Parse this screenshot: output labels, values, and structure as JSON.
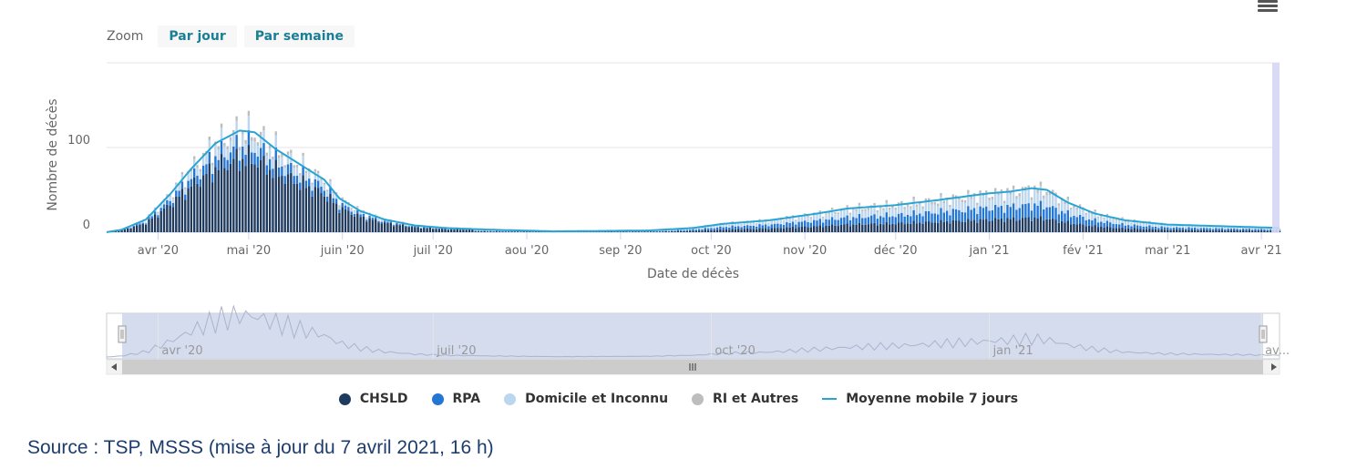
{
  "zoom": {
    "label": "Zoom",
    "buttons": [
      "Par jour",
      "Par semaine"
    ]
  },
  "chart_data": {
    "type": "bar",
    "stacked": true,
    "ylabel": "Nombre de décès",
    "xlabel": "Date de décès",
    "ylim": [
      0,
      200
    ],
    "yticks": [
      0,
      100
    ],
    "x_start": "2020-03-15",
    "x_end": "2021-04-07",
    "xticks": [
      "avr '20",
      "mai '20",
      "juin '20",
      "juil '20",
      "aou '20",
      "sep '20",
      "oct '20",
      "nov '20",
      "déc '20",
      "jan '21",
      "fév '21",
      "mar '21",
      "avr '21"
    ],
    "navigator_labels": [
      "avr '20",
      "juil '20",
      "oct '20",
      "jan '21",
      "av..."
    ],
    "grid": true,
    "legend_position": "bottom-center",
    "series": [
      {
        "name": "CHSLD",
        "color": "#1f3a5f"
      },
      {
        "name": "RPA",
        "color": "#2376d4"
      },
      {
        "name": "Domicile et Inconnu",
        "color": "#bcd6ee"
      },
      {
        "name": "RI et Autres",
        "color": "#bdbdbd"
      },
      {
        "name": "Moyenne mobile 7 jours",
        "color": "#2aa4d4",
        "type": "line"
      }
    ],
    "moving_average_keypoints": [
      [
        "2020-03-15",
        0
      ],
      [
        "2020-03-20",
        3
      ],
      [
        "2020-03-28",
        15
      ],
      [
        "2020-04-05",
        45
      ],
      [
        "2020-04-12",
        75
      ],
      [
        "2020-04-20",
        105
      ],
      [
        "2020-04-28",
        120
      ],
      [
        "2020-05-03",
        118
      ],
      [
        "2020-05-10",
        98
      ],
      [
        "2020-05-18",
        80
      ],
      [
        "2020-05-26",
        62
      ],
      [
        "2020-05-31",
        40
      ],
      [
        "2020-06-07",
        25
      ],
      [
        "2020-06-15",
        15
      ],
      [
        "2020-06-25",
        8
      ],
      [
        "2020-07-05",
        5
      ],
      [
        "2020-07-20",
        3
      ],
      [
        "2020-08-10",
        1
      ],
      [
        "2020-09-10",
        2
      ],
      [
        "2020-09-25",
        5
      ],
      [
        "2020-10-05",
        10
      ],
      [
        "2020-10-20",
        14
      ],
      [
        "2020-11-05",
        22
      ],
      [
        "2020-11-15",
        28
      ],
      [
        "2020-12-01",
        32
      ],
      [
        "2020-12-15",
        38
      ],
      [
        "2021-01-01",
        46
      ],
      [
        "2021-01-08",
        48
      ],
      [
        "2021-01-15",
        52
      ],
      [
        "2021-01-20",
        50
      ],
      [
        "2021-01-27",
        35
      ],
      [
        "2021-02-05",
        22
      ],
      [
        "2021-02-15",
        14
      ],
      [
        "2021-03-01",
        9
      ],
      [
        "2021-03-20",
        7
      ],
      [
        "2021-04-07",
        5
      ]
    ]
  },
  "legend": [
    "CHSLD",
    "RPA",
    "Domicile et Inconnu",
    "RI et Autres",
    "Moyenne mobile 7 jours"
  ],
  "source": "Source : TSP, MSSS (mise à jour du 7 avril 2021, 16 h)"
}
